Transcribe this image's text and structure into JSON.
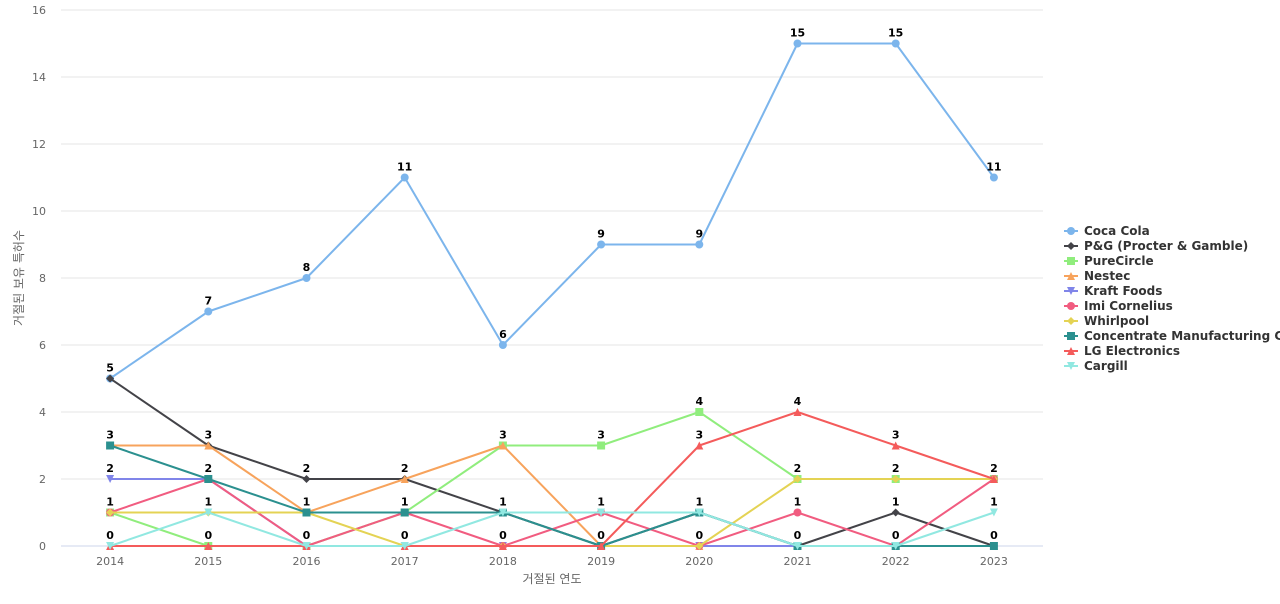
{
  "chart_data": {
    "type": "line",
    "xlabel": "거절된 연도",
    "ylabel": "거절된 보유 특허수",
    "ylim": [
      0,
      16
    ],
    "yticks": [
      0,
      2,
      4,
      6,
      8,
      10,
      12,
      14,
      16
    ],
    "grid": true,
    "legend_position": "right",
    "categories": [
      "2014",
      "2015",
      "2016",
      "2017",
      "2018",
      "2019",
      "2020",
      "2021",
      "2022",
      "2023"
    ],
    "series": [
      {
        "name": "Coca Cola",
        "color": "#7cb5ec",
        "marker": "circle",
        "values": [
          5,
          7,
          8,
          11,
          6,
          9,
          9,
          15,
          15,
          11
        ]
      },
      {
        "name": "P&G (Procter & Gamble)",
        "color": "#434348",
        "marker": "diamond",
        "values": [
          5,
          3,
          2,
          2,
          1,
          0,
          1,
          0,
          1,
          0
        ]
      },
      {
        "name": "PureCircle",
        "color": "#90ed7d",
        "marker": "square",
        "values": [
          1,
          0,
          0,
          1,
          3,
          3,
          4,
          2,
          2,
          2
        ]
      },
      {
        "name": "Nestec",
        "color": "#f7a35c",
        "marker": "triangle",
        "values": [
          3,
          3,
          1,
          2,
          3,
          0,
          0,
          0,
          0,
          0
        ]
      },
      {
        "name": "Kraft Foods",
        "color": "#8085e9",
        "marker": "triangle-down",
        "values": [
          2,
          2,
          0,
          0,
          0,
          0,
          0,
          0,
          0,
          0
        ]
      },
      {
        "name": "Imi Cornelius",
        "color": "#f15c80",
        "marker": "circle",
        "values": [
          1,
          2,
          0,
          1,
          0,
          1,
          0,
          1,
          0,
          2
        ]
      },
      {
        "name": "Whirlpool",
        "color": "#e4d354",
        "marker": "diamond",
        "values": [
          1,
          1,
          1,
          0,
          0,
          0,
          0,
          2,
          2,
          2
        ]
      },
      {
        "name": "Concentrate Manufacturing C...",
        "color": "#2b908f",
        "marker": "square",
        "values": [
          3,
          2,
          1,
          1,
          1,
          0,
          1,
          0,
          0,
          0
        ]
      },
      {
        "name": "LG Electronics",
        "color": "#f45b5b",
        "marker": "triangle",
        "values": [
          0,
          0,
          0,
          0,
          0,
          0,
          3,
          4,
          3,
          2
        ]
      },
      {
        "name": "Cargill",
        "color": "#91e8e1",
        "marker": "triangle-down",
        "values": [
          0,
          1,
          0,
          0,
          1,
          1,
          1,
          0,
          0,
          1
        ]
      }
    ],
    "top_labels": [
      5,
      7,
      8,
      11,
      6,
      9,
      9,
      15,
      15,
      11
    ],
    "second_labels": [
      3,
      3,
      2,
      2,
      3,
      3,
      4,
      4,
      3,
      2
    ],
    "third_labels": [
      2,
      2,
      1,
      1,
      1,
      1,
      3,
      2,
      2,
      1
    ],
    "fourth_labels": [
      1,
      1,
      0,
      0,
      0,
      0,
      1,
      1,
      1,
      0
    ],
    "fifth_labels": [
      0,
      0,
      null,
      null,
      null,
      null,
      0,
      0,
      0,
      null
    ]
  }
}
